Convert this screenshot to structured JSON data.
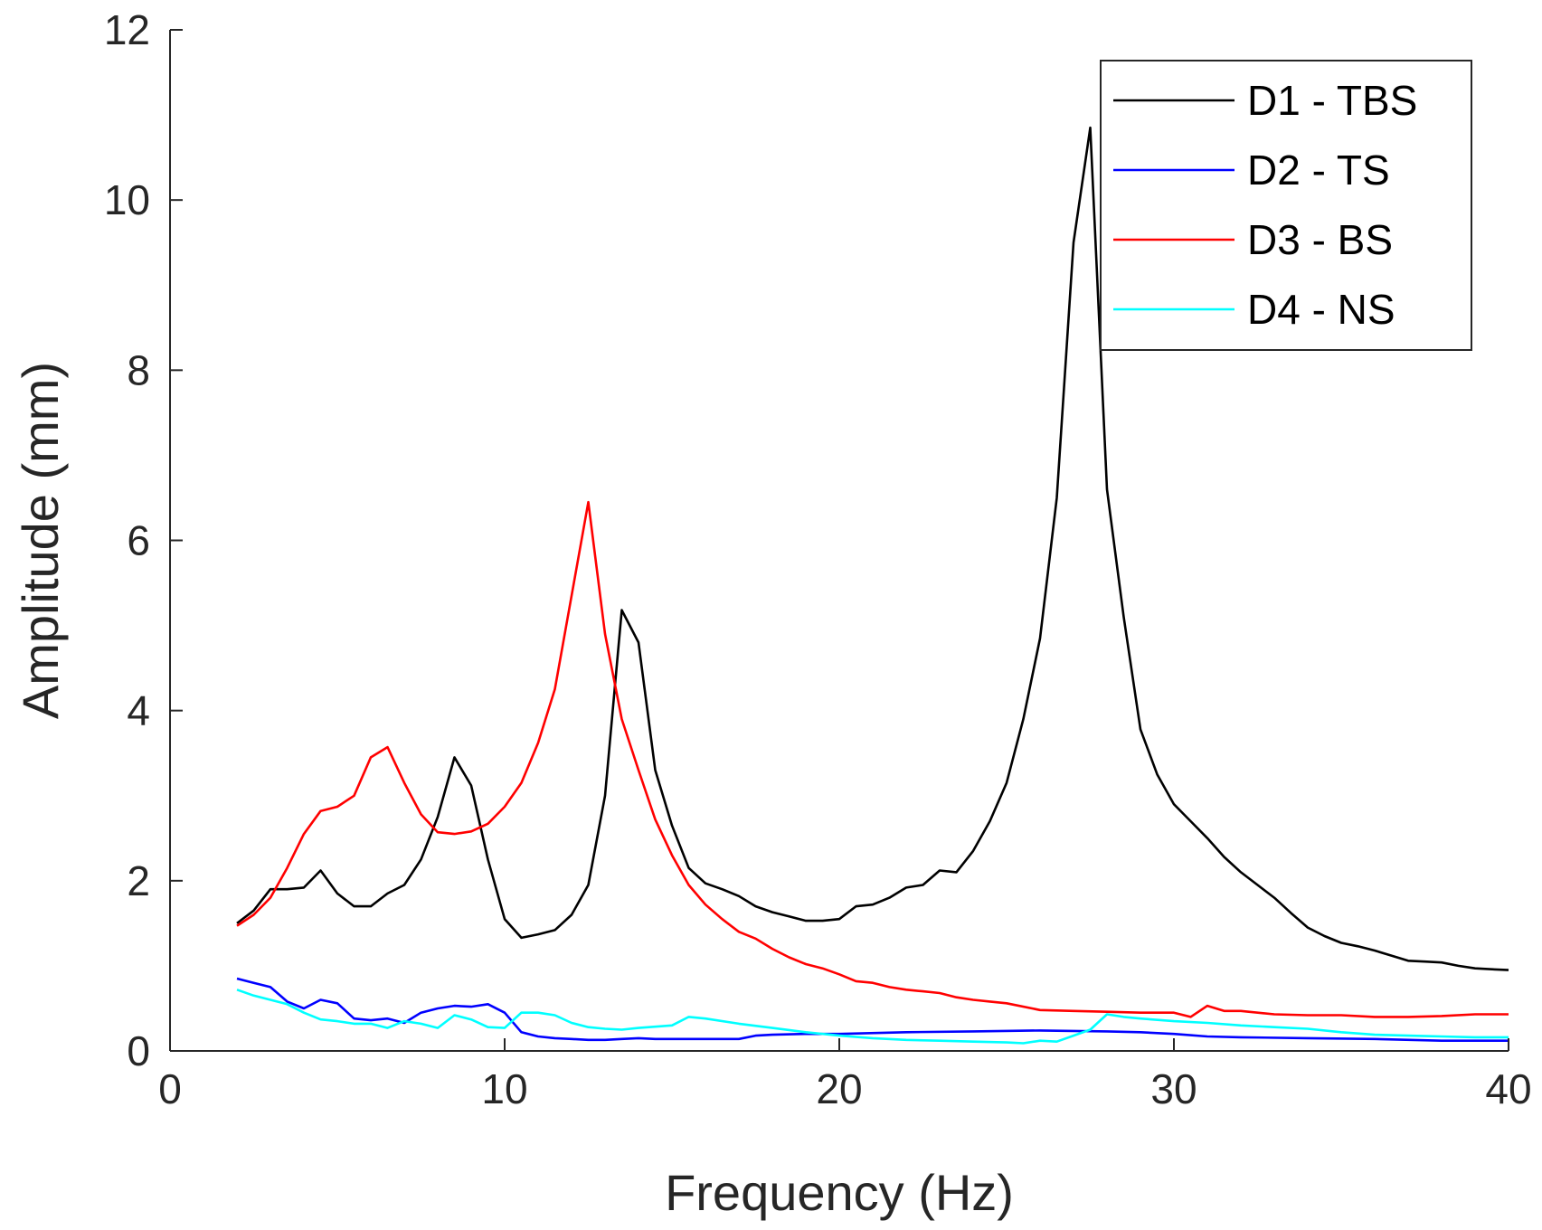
{
  "chart_data": {
    "type": "line",
    "xlabel": "Frequency (Hz)",
    "ylabel": "Amplitude (mm)",
    "xlim": [
      0,
      40
    ],
    "ylim": [
      0,
      12
    ],
    "xticks": [
      0,
      10,
      20,
      30,
      40
    ],
    "yticks": [
      0,
      2,
      4,
      6,
      8,
      10,
      12
    ],
    "grid": false,
    "legend_position": "top-right",
    "series": [
      {
        "name": "D1 - TBS",
        "color": "#000000",
        "x": [
          2,
          2.5,
          3,
          3.5,
          4,
          4.5,
          5,
          5.5,
          6,
          6.5,
          7,
          7.5,
          8,
          8.5,
          9,
          9.5,
          10,
          10.5,
          11,
          11.5,
          12,
          12.5,
          13,
          13.5,
          14,
          14.5,
          15,
          15.5,
          16,
          16.5,
          17,
          17.5,
          18,
          18.5,
          19,
          19.5,
          20,
          20.5,
          21,
          21.5,
          22,
          22.5,
          23,
          23.5,
          24,
          24.5,
          25,
          25.5,
          26,
          26.5,
          27,
          27.5,
          28,
          28.5,
          29,
          29.5,
          30,
          30.5,
          31,
          31.5,
          32,
          32.5,
          33,
          33.5,
          34,
          34.5,
          35,
          35.5,
          36,
          36.5,
          37,
          37.5,
          38,
          38.5,
          39,
          39.5,
          40
        ],
        "y": [
          1.5,
          1.65,
          1.9,
          1.9,
          1.92,
          2.12,
          1.85,
          1.7,
          1.7,
          1.85,
          1.95,
          2.25,
          2.75,
          3.45,
          3.12,
          2.25,
          1.55,
          1.33,
          1.37,
          1.42,
          1.6,
          1.95,
          3.0,
          5.18,
          4.8,
          3.3,
          2.65,
          2.15,
          1.97,
          1.9,
          1.82,
          1.7,
          1.63,
          1.58,
          1.53,
          1.53,
          1.55,
          1.7,
          1.72,
          1.8,
          1.92,
          1.95,
          2.12,
          2.1,
          2.35,
          2.7,
          3.15,
          3.9,
          4.85,
          6.5,
          9.5,
          10.85,
          6.6,
          5.1,
          3.78,
          3.25,
          2.9,
          2.7,
          2.5,
          2.28,
          2.1,
          1.95,
          1.8,
          1.62,
          1.45,
          1.35,
          1.27,
          1.23,
          1.18,
          1.12,
          1.06,
          1.05,
          1.04,
          1.0,
          0.97,
          0.96,
          0.95
        ]
      },
      {
        "name": "D2 - TS",
        "color": "#0000ff",
        "x": [
          2,
          2.5,
          3,
          3.5,
          4,
          4.5,
          5,
          5.5,
          6,
          6.5,
          7,
          7.5,
          8,
          8.5,
          9,
          9.5,
          10,
          10.5,
          11,
          11.5,
          12,
          12.5,
          13,
          13.5,
          14,
          14.5,
          15,
          16,
          17,
          17.5,
          18,
          19,
          20,
          22,
          24,
          26,
          28,
          29,
          30,
          31,
          32,
          34,
          36,
          38,
          40
        ],
        "y": [
          0.85,
          0.8,
          0.75,
          0.58,
          0.5,
          0.6,
          0.56,
          0.38,
          0.36,
          0.38,
          0.33,
          0.45,
          0.5,
          0.53,
          0.52,
          0.55,
          0.45,
          0.22,
          0.17,
          0.15,
          0.14,
          0.13,
          0.13,
          0.14,
          0.15,
          0.14,
          0.14,
          0.14,
          0.14,
          0.18,
          0.19,
          0.2,
          0.2,
          0.22,
          0.23,
          0.24,
          0.23,
          0.22,
          0.2,
          0.17,
          0.16,
          0.15,
          0.14,
          0.12,
          0.12
        ]
      },
      {
        "name": "D3 - BS",
        "color": "#ff0000",
        "x": [
          2,
          2.5,
          3,
          3.5,
          4,
          4.5,
          5,
          5.5,
          6,
          6.5,
          7,
          7.5,
          8,
          8.5,
          9,
          9.5,
          10,
          10.5,
          11,
          11.5,
          12,
          12.5,
          13,
          13.5,
          14,
          14.5,
          15,
          15.5,
          16,
          16.5,
          17,
          17.5,
          18,
          18.5,
          19,
          19.5,
          20,
          20.5,
          21,
          21.5,
          22,
          22.5,
          23,
          23.5,
          24,
          24.5,
          25,
          26,
          27,
          28,
          29,
          30,
          30.5,
          31,
          31.5,
          32,
          33,
          34,
          35,
          36,
          37,
          38,
          39,
          40
        ],
        "y": [
          1.47,
          1.6,
          1.8,
          2.15,
          2.55,
          2.82,
          2.87,
          3.0,
          3.45,
          3.57,
          3.15,
          2.78,
          2.57,
          2.55,
          2.58,
          2.67,
          2.87,
          3.15,
          3.62,
          4.25,
          5.35,
          6.45,
          4.9,
          3.9,
          3.3,
          2.72,
          2.3,
          1.95,
          1.72,
          1.55,
          1.4,
          1.32,
          1.2,
          1.1,
          1.02,
          0.97,
          0.9,
          0.82,
          0.8,
          0.75,
          0.72,
          0.7,
          0.68,
          0.63,
          0.6,
          0.58,
          0.56,
          0.48,
          0.47,
          0.46,
          0.45,
          0.45,
          0.4,
          0.53,
          0.47,
          0.47,
          0.43,
          0.42,
          0.42,
          0.4,
          0.4,
          0.41,
          0.43,
          0.43
        ]
      },
      {
        "name": "D4 - NS",
        "color": "#00ffff",
        "x": [
          2,
          2.5,
          3,
          3.5,
          4,
          4.5,
          5,
          5.5,
          6,
          6.5,
          7,
          7.5,
          8,
          8.5,
          9,
          9.5,
          10,
          10.5,
          11,
          11.5,
          12,
          12.5,
          13,
          13.5,
          14,
          15,
          15.5,
          16,
          17,
          18,
          19,
          20,
          21,
          22,
          23,
          24,
          25,
          25.5,
          26,
          26.5,
          27,
          27.5,
          28,
          28.5,
          29,
          30,
          31,
          32,
          33,
          34,
          35,
          36,
          37,
          38,
          39,
          40
        ],
        "y": [
          0.72,
          0.65,
          0.6,
          0.55,
          0.45,
          0.37,
          0.35,
          0.32,
          0.32,
          0.27,
          0.35,
          0.32,
          0.27,
          0.42,
          0.37,
          0.28,
          0.27,
          0.45,
          0.45,
          0.42,
          0.33,
          0.28,
          0.26,
          0.25,
          0.27,
          0.3,
          0.4,
          0.38,
          0.32,
          0.27,
          0.22,
          0.18,
          0.15,
          0.13,
          0.12,
          0.11,
          0.1,
          0.09,
          0.12,
          0.11,
          0.18,
          0.25,
          0.43,
          0.4,
          0.38,
          0.35,
          0.33,
          0.3,
          0.28,
          0.26,
          0.22,
          0.19,
          0.18,
          0.17,
          0.16,
          0.16
        ]
      }
    ]
  }
}
